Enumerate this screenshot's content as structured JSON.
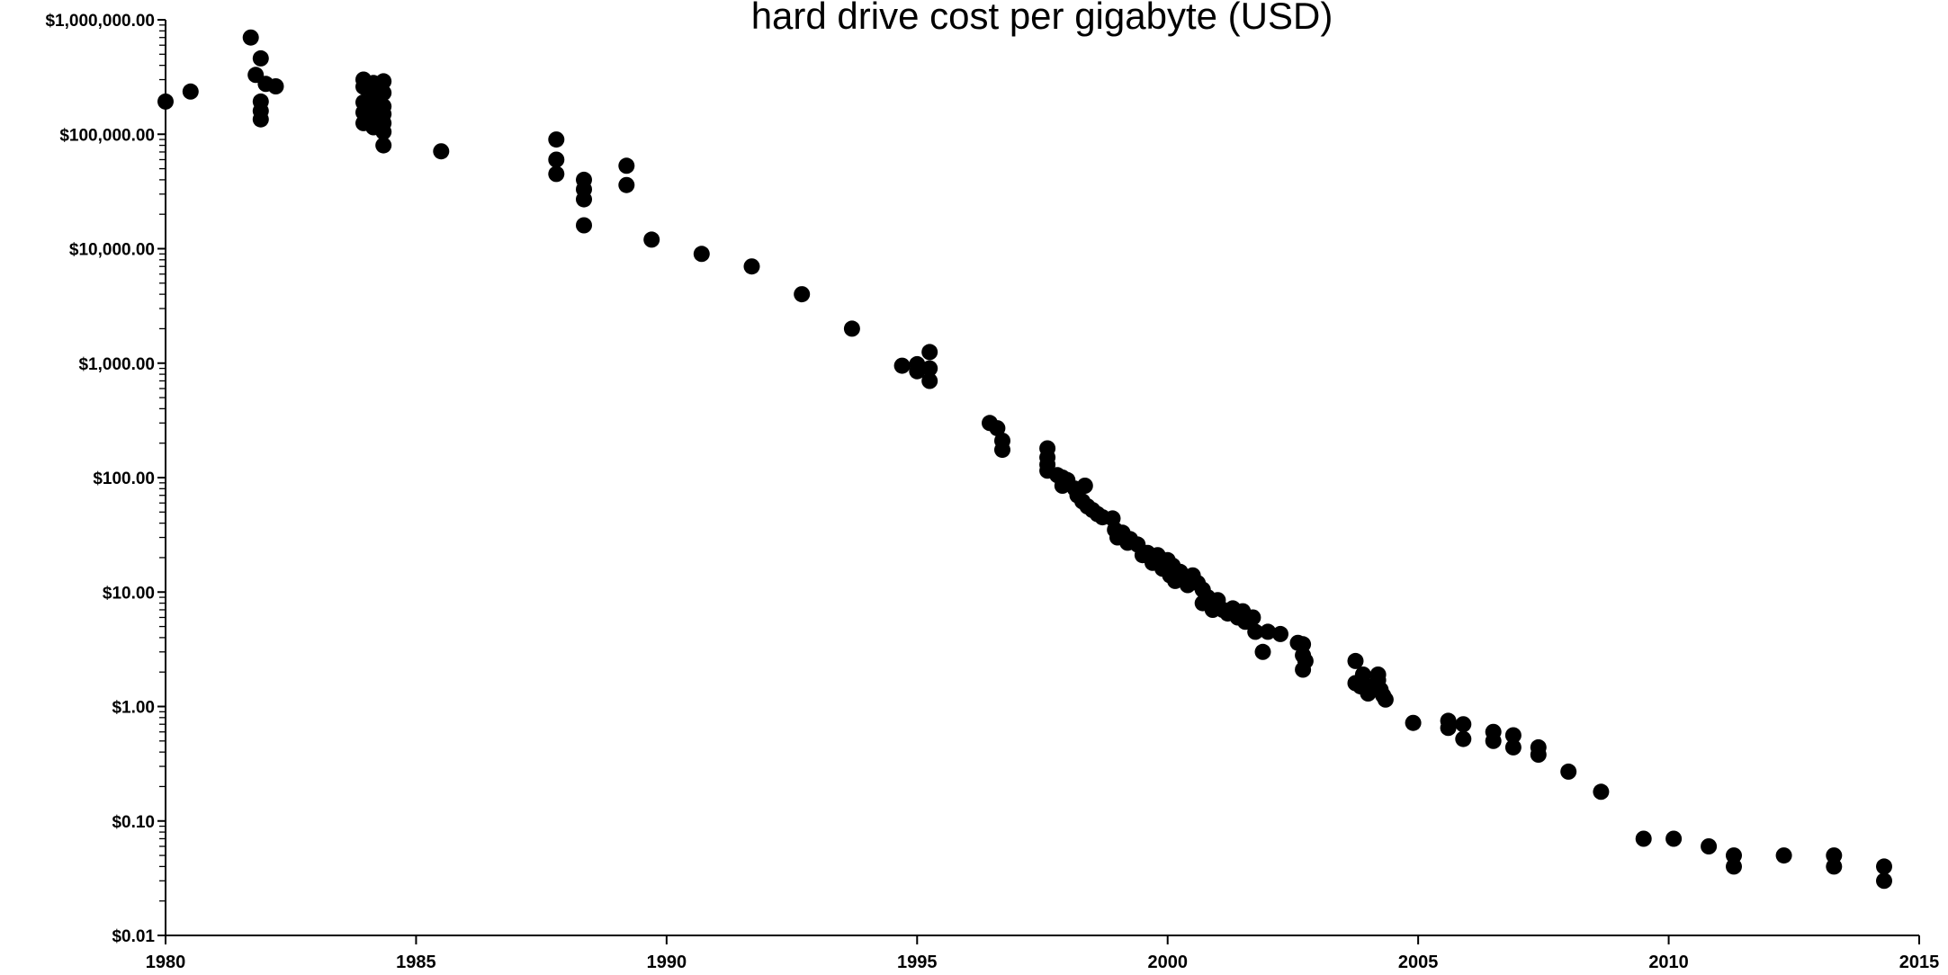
{
  "chart_data": {
    "type": "scatter",
    "title": "hard drive cost per gigabyte (USD)",
    "xlabel": "",
    "ylabel": "",
    "y_scale": "log",
    "xlim": [
      1980,
      2015
    ],
    "ylim": [
      0.01,
      1000000
    ],
    "grid": false,
    "legend": "none",
    "x_ticks": [
      "1980",
      "1985",
      "1990",
      "1995",
      "2000",
      "2005",
      "2010",
      "2015"
    ],
    "y_ticks": [
      "$1,000,000.00",
      "$100,000.00",
      "$10,000.00",
      "$1,000.00",
      "$100.00",
      "$10.00",
      "$1.00",
      "$0.10",
      "$0.01"
    ],
    "points": [
      [
        1980.0,
        193000
      ],
      [
        1980.5,
        236000
      ],
      [
        1981.7,
        700000
      ],
      [
        1981.8,
        330000
      ],
      [
        1981.9,
        460000
      ],
      [
        1981.9,
        193000
      ],
      [
        1981.9,
        160000
      ],
      [
        1981.9,
        135000
      ],
      [
        1982.0,
        275000
      ],
      [
        1982.2,
        262000
      ],
      [
        1983.95,
        300000
      ],
      [
        1983.95,
        260000
      ],
      [
        1983.95,
        190000
      ],
      [
        1983.95,
        155000
      ],
      [
        1983.95,
        125000
      ],
      [
        1984.15,
        280000
      ],
      [
        1984.15,
        220000
      ],
      [
        1984.15,
        170000
      ],
      [
        1984.15,
        140000
      ],
      [
        1984.15,
        115000
      ],
      [
        1984.35,
        290000
      ],
      [
        1984.35,
        230000
      ],
      [
        1984.35,
        175000
      ],
      [
        1984.35,
        150000
      ],
      [
        1984.35,
        125000
      ],
      [
        1984.35,
        105000
      ],
      [
        1984.35,
        80000
      ],
      [
        1985.5,
        71000
      ],
      [
        1987.8,
        90000
      ],
      [
        1987.8,
        60000
      ],
      [
        1987.8,
        45000
      ],
      [
        1988.35,
        40000
      ],
      [
        1988.35,
        33000
      ],
      [
        1988.35,
        27000
      ],
      [
        1988.35,
        16000
      ],
      [
        1989.2,
        53000
      ],
      [
        1989.2,
        36000
      ],
      [
        1989.7,
        12000
      ],
      [
        1990.7,
        9000
      ],
      [
        1991.7,
        7000
      ],
      [
        1992.7,
        4000
      ],
      [
        1993.7,
        2000
      ],
      [
        1994.7,
        950
      ],
      [
        1995.0,
        980
      ],
      [
        1995.0,
        850
      ],
      [
        1995.25,
        1250
      ],
      [
        1995.25,
        900
      ],
      [
        1995.25,
        700
      ],
      [
        1996.45,
        300
      ],
      [
        1996.6,
        270
      ],
      [
        1996.7,
        210
      ],
      [
        1996.7,
        175
      ],
      [
        1997.6,
        180
      ],
      [
        1997.6,
        150
      ],
      [
        1997.6,
        130
      ],
      [
        1997.6,
        115
      ],
      [
        1997.8,
        105
      ],
      [
        1997.9,
        100
      ],
      [
        1997.9,
        85
      ],
      [
        1998.0,
        95
      ],
      [
        1998.15,
        80
      ],
      [
        1998.2,
        70
      ],
      [
        1998.3,
        62
      ],
      [
        1998.35,
        85
      ],
      [
        1998.4,
        56
      ],
      [
        1998.5,
        52
      ],
      [
        1998.6,
        48
      ],
      [
        1998.7,
        45
      ],
      [
        1998.9,
        44
      ],
      [
        1998.95,
        35
      ],
      [
        1999.0,
        30
      ],
      [
        1999.1,
        33
      ],
      [
        1999.2,
        27
      ],
      [
        1999.25,
        29
      ],
      [
        1999.4,
        26
      ],
      [
        1999.5,
        21
      ],
      [
        1999.6,
        22
      ],
      [
        1999.7,
        18
      ],
      [
        1999.8,
        21
      ],
      [
        1999.9,
        16
      ],
      [
        2000.0,
        19
      ],
      [
        2000.05,
        14
      ],
      [
        2000.1,
        17
      ],
      [
        2000.15,
        12.5
      ],
      [
        2000.25,
        15
      ],
      [
        2000.35,
        13
      ],
      [
        2000.4,
        11.5
      ],
      [
        2000.5,
        14
      ],
      [
        2000.6,
        12
      ],
      [
        2000.7,
        10.5
      ],
      [
        2000.7,
        8
      ],
      [
        2000.8,
        9
      ],
      [
        2000.9,
        7
      ],
      [
        2001.0,
        8.5
      ],
      [
        2001.1,
        7
      ],
      [
        2001.2,
        6.5
      ],
      [
        2001.3,
        7.2
      ],
      [
        2001.4,
        6
      ],
      [
        2001.5,
        6.8
      ],
      [
        2001.55,
        5.5
      ],
      [
        2001.7,
        6
      ],
      [
        2001.75,
        4.5
      ],
      [
        2001.9,
        3
      ],
      [
        2002.0,
        4.5
      ],
      [
        2002.25,
        4.3
      ],
      [
        2002.6,
        3.6
      ],
      [
        2002.7,
        3.5
      ],
      [
        2002.7,
        2.8
      ],
      [
        2002.7,
        2.1
      ],
      [
        2002.75,
        2.5
      ],
      [
        2003.75,
        2.5
      ],
      [
        2003.75,
        1.6
      ],
      [
        2003.85,
        1.5
      ],
      [
        2003.9,
        1.9
      ],
      [
        2004.0,
        1.5
      ],
      [
        2004.0,
        1.3
      ],
      [
        2004.2,
        1.9
      ],
      [
        2004.2,
        1.7
      ],
      [
        2004.25,
        1.4
      ],
      [
        2004.3,
        1.25
      ],
      [
        2004.35,
        1.15
      ],
      [
        2004.9,
        0.72
      ],
      [
        2005.6,
        0.75
      ],
      [
        2005.6,
        0.65
      ],
      [
        2005.9,
        0.7
      ],
      [
        2005.9,
        0.52
      ],
      [
        2006.5,
        0.6
      ],
      [
        2006.5,
        0.5
      ],
      [
        2006.9,
        0.56
      ],
      [
        2006.9,
        0.44
      ],
      [
        2007.4,
        0.44
      ],
      [
        2007.4,
        0.38
      ],
      [
        2008.0,
        0.27
      ],
      [
        2008.65,
        0.18
      ],
      [
        2009.5,
        0.07
      ],
      [
        2010.1,
        0.07
      ],
      [
        2010.8,
        0.06
      ],
      [
        2011.3,
        0.05
      ],
      [
        2011.3,
        0.04
      ],
      [
        2012.3,
        0.05
      ],
      [
        2013.3,
        0.05
      ],
      [
        2013.3,
        0.04
      ],
      [
        2014.3,
        0.04
      ],
      [
        2014.3,
        0.03
      ]
    ]
  }
}
